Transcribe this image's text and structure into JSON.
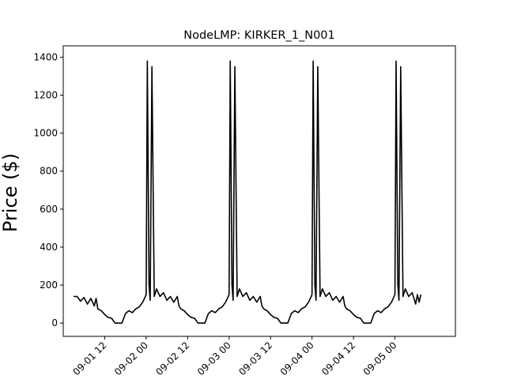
{
  "chart_data": {
    "type": "line",
    "title": "NodeLMP: KIRKER_1_N001",
    "xlabel": "",
    "ylabel": "Price ($)",
    "ylim": [
      -70,
      1460
    ],
    "xlim": [
      "2023-09-01T00:00",
      "2023-09-05T17:30"
    ],
    "grid": false,
    "yticks": [
      0,
      200,
      400,
      600,
      800,
      1000,
      1200,
      1400
    ],
    "xticks": [
      {
        "at": "2023-09-01T12:00",
        "label": "09-01 12"
      },
      {
        "at": "2023-09-02T00:00",
        "label": "09-02 00"
      },
      {
        "at": "2023-09-02T12:00",
        "label": "09-02 12"
      },
      {
        "at": "2023-09-03T00:00",
        "label": "09-03 00"
      },
      {
        "at": "2023-09-03T12:00",
        "label": "09-03 12"
      },
      {
        "at": "2023-09-04T00:00",
        "label": "09-04 00"
      },
      {
        "at": "2023-09-04T12:00",
        "label": "09-04 12"
      },
      {
        "at": "2023-09-05T00:00",
        "label": "09-05 00"
      }
    ],
    "series": [
      {
        "color": "#000000",
        "points": [
          [
            "2023-09-01T03:00",
            140
          ],
          [
            "2023-09-01T04:00",
            140
          ],
          [
            "2023-09-01T05:00",
            115
          ],
          [
            "2023-09-01T06:00",
            135
          ],
          [
            "2023-09-01T07:00",
            100
          ],
          [
            "2023-09-01T08:00",
            130
          ],
          [
            "2023-09-01T09:00",
            90
          ],
          [
            "2023-09-01T09:30",
            130
          ],
          [
            "2023-09-01T10:00",
            75
          ],
          [
            "2023-09-01T11:00",
            65
          ],
          [
            "2023-09-01T12:00",
            45
          ],
          [
            "2023-09-01T13:00",
            30
          ],
          [
            "2023-09-01T14:00",
            25
          ],
          [
            "2023-09-01T15:00",
            0
          ],
          [
            "2023-09-01T17:00",
            0
          ],
          [
            "2023-09-01T18:00",
            50
          ],
          [
            "2023-09-01T19:00",
            65
          ],
          [
            "2023-09-01T20:00",
            55
          ],
          [
            "2023-09-01T21:00",
            75
          ],
          [
            "2023-09-01T22:00",
            85
          ],
          [
            "2023-09-01T23:00",
            110
          ],
          [
            "2023-09-01T23:30",
            130
          ],
          [
            "2023-09-02T00:00",
            150
          ],
          [
            "2023-09-02T00:20",
            1380
          ],
          [
            "2023-09-02T00:50",
            200
          ],
          [
            "2023-09-02T01:10",
            120
          ],
          [
            "2023-09-02T01:40",
            1350
          ],
          [
            "2023-09-02T02:20",
            140
          ],
          [
            "2023-09-02T03:00",
            180
          ],
          [
            "2023-09-02T04:00",
            140
          ],
          [
            "2023-09-02T05:00",
            160
          ],
          [
            "2023-09-02T06:00",
            120
          ],
          [
            "2023-09-02T07:00",
            140
          ],
          [
            "2023-09-02T08:00",
            110
          ],
          [
            "2023-09-02T09:00",
            140
          ],
          [
            "2023-09-02T09:30",
            90
          ],
          [
            "2023-09-02T10:00",
            75
          ],
          [
            "2023-09-02T11:00",
            65
          ],
          [
            "2023-09-02T12:00",
            45
          ],
          [
            "2023-09-02T13:00",
            30
          ],
          [
            "2023-09-02T14:00",
            25
          ],
          [
            "2023-09-02T15:00",
            0
          ],
          [
            "2023-09-02T17:00",
            0
          ],
          [
            "2023-09-02T18:00",
            50
          ],
          [
            "2023-09-02T19:00",
            65
          ],
          [
            "2023-09-02T20:00",
            55
          ],
          [
            "2023-09-02T21:00",
            75
          ],
          [
            "2023-09-02T22:00",
            85
          ],
          [
            "2023-09-02T23:00",
            110
          ],
          [
            "2023-09-02T23:30",
            130
          ],
          [
            "2023-09-03T00:00",
            150
          ],
          [
            "2023-09-03T00:20",
            1380
          ],
          [
            "2023-09-03T00:50",
            200
          ],
          [
            "2023-09-03T01:10",
            120
          ],
          [
            "2023-09-03T01:40",
            1350
          ],
          [
            "2023-09-03T02:20",
            140
          ],
          [
            "2023-09-03T03:00",
            180
          ],
          [
            "2023-09-03T04:00",
            140
          ],
          [
            "2023-09-03T05:00",
            160
          ],
          [
            "2023-09-03T06:00",
            120
          ],
          [
            "2023-09-03T07:00",
            140
          ],
          [
            "2023-09-03T08:00",
            110
          ],
          [
            "2023-09-03T09:00",
            140
          ],
          [
            "2023-09-03T09:30",
            90
          ],
          [
            "2023-09-03T10:00",
            75
          ],
          [
            "2023-09-03T11:00",
            65
          ],
          [
            "2023-09-03T12:00",
            45
          ],
          [
            "2023-09-03T13:00",
            30
          ],
          [
            "2023-09-03T14:00",
            25
          ],
          [
            "2023-09-03T15:00",
            0
          ],
          [
            "2023-09-03T17:00",
            0
          ],
          [
            "2023-09-03T18:00",
            50
          ],
          [
            "2023-09-03T19:00",
            65
          ],
          [
            "2023-09-03T20:00",
            55
          ],
          [
            "2023-09-03T21:00",
            75
          ],
          [
            "2023-09-03T22:00",
            85
          ],
          [
            "2023-09-03T23:00",
            110
          ],
          [
            "2023-09-03T23:30",
            130
          ],
          [
            "2023-09-04T00:00",
            150
          ],
          [
            "2023-09-04T00:20",
            1380
          ],
          [
            "2023-09-04T00:50",
            200
          ],
          [
            "2023-09-04T01:10",
            120
          ],
          [
            "2023-09-04T01:40",
            1350
          ],
          [
            "2023-09-04T02:20",
            140
          ],
          [
            "2023-09-04T03:00",
            180
          ],
          [
            "2023-09-04T04:00",
            140
          ],
          [
            "2023-09-04T05:00",
            160
          ],
          [
            "2023-09-04T06:00",
            120
          ],
          [
            "2023-09-04T07:00",
            140
          ],
          [
            "2023-09-04T08:00",
            110
          ],
          [
            "2023-09-04T09:00",
            140
          ],
          [
            "2023-09-04T09:30",
            90
          ],
          [
            "2023-09-04T10:00",
            75
          ],
          [
            "2023-09-04T11:00",
            65
          ],
          [
            "2023-09-04T12:00",
            45
          ],
          [
            "2023-09-04T13:00",
            30
          ],
          [
            "2023-09-04T14:00",
            25
          ],
          [
            "2023-09-04T15:00",
            0
          ],
          [
            "2023-09-04T17:00",
            0
          ],
          [
            "2023-09-04T18:00",
            50
          ],
          [
            "2023-09-04T19:00",
            65
          ],
          [
            "2023-09-04T20:00",
            55
          ],
          [
            "2023-09-04T21:00",
            75
          ],
          [
            "2023-09-04T22:00",
            85
          ],
          [
            "2023-09-04T23:00",
            110
          ],
          [
            "2023-09-04T23:30",
            130
          ],
          [
            "2023-09-05T00:00",
            150
          ],
          [
            "2023-09-05T00:20",
            1380
          ],
          [
            "2023-09-05T00:50",
            200
          ],
          [
            "2023-09-05T01:10",
            120
          ],
          [
            "2023-09-05T01:40",
            1350
          ],
          [
            "2023-09-05T02:20",
            140
          ],
          [
            "2023-09-05T03:00",
            180
          ],
          [
            "2023-09-05T04:00",
            140
          ],
          [
            "2023-09-05T05:00",
            160
          ],
          [
            "2023-09-05T06:00",
            100
          ],
          [
            "2023-09-05T06:30",
            150
          ],
          [
            "2023-09-05T07:00",
            110
          ],
          [
            "2023-09-05T07:30",
            150
          ]
        ]
      }
    ]
  }
}
